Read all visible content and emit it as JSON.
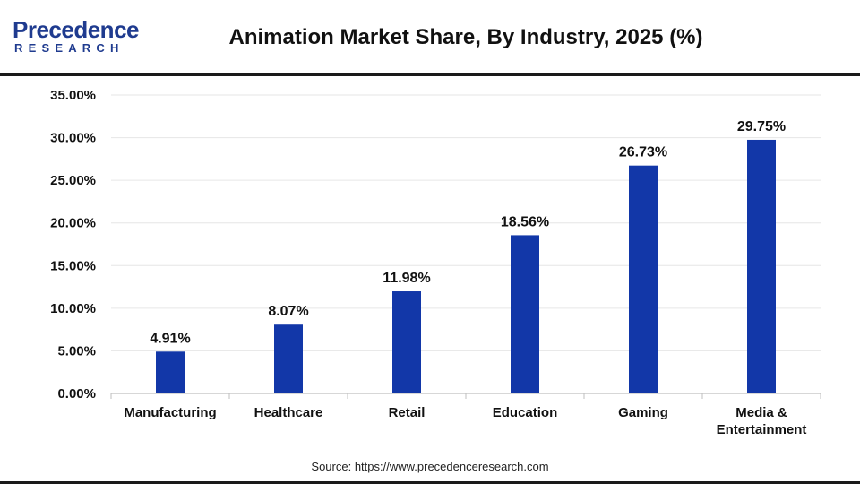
{
  "brand": {
    "name": "Precedence",
    "sub": "RESEARCH",
    "color": "#1f3b8f"
  },
  "source": "Source: https://www.precedenceresearch.com",
  "chart_data": {
    "type": "bar",
    "title": "Animation Market Share, By Industry, 2025 (%)",
    "xlabel": "",
    "ylabel": "",
    "categories": [
      "Manufacturing",
      "Healthcare",
      "Retail",
      "Education",
      "Gaming",
      "Media & Entertainment"
    ],
    "category_lines": [
      [
        "Manufacturing"
      ],
      [
        "Healthcare"
      ],
      [
        "Retail"
      ],
      [
        "Education"
      ],
      [
        "Gaming"
      ],
      [
        "Media &",
        "Entertainment"
      ]
    ],
    "values": [
      4.91,
      8.07,
      11.98,
      18.56,
      26.73,
      29.75
    ],
    "data_labels": [
      "4.91%",
      "8.07%",
      "11.98%",
      "18.56%",
      "26.73%",
      "29.75%"
    ],
    "ylim": [
      0,
      35
    ],
    "yticks": [
      0,
      5,
      10,
      15,
      20,
      25,
      30,
      35
    ],
    "ytick_labels": [
      "0.00%",
      "5.00%",
      "10.00%",
      "15.00%",
      "20.00%",
      "25.00%",
      "30.00%",
      "35.00%"
    ],
    "bar_color": "#1237a8",
    "grid": true,
    "legend": "none"
  }
}
